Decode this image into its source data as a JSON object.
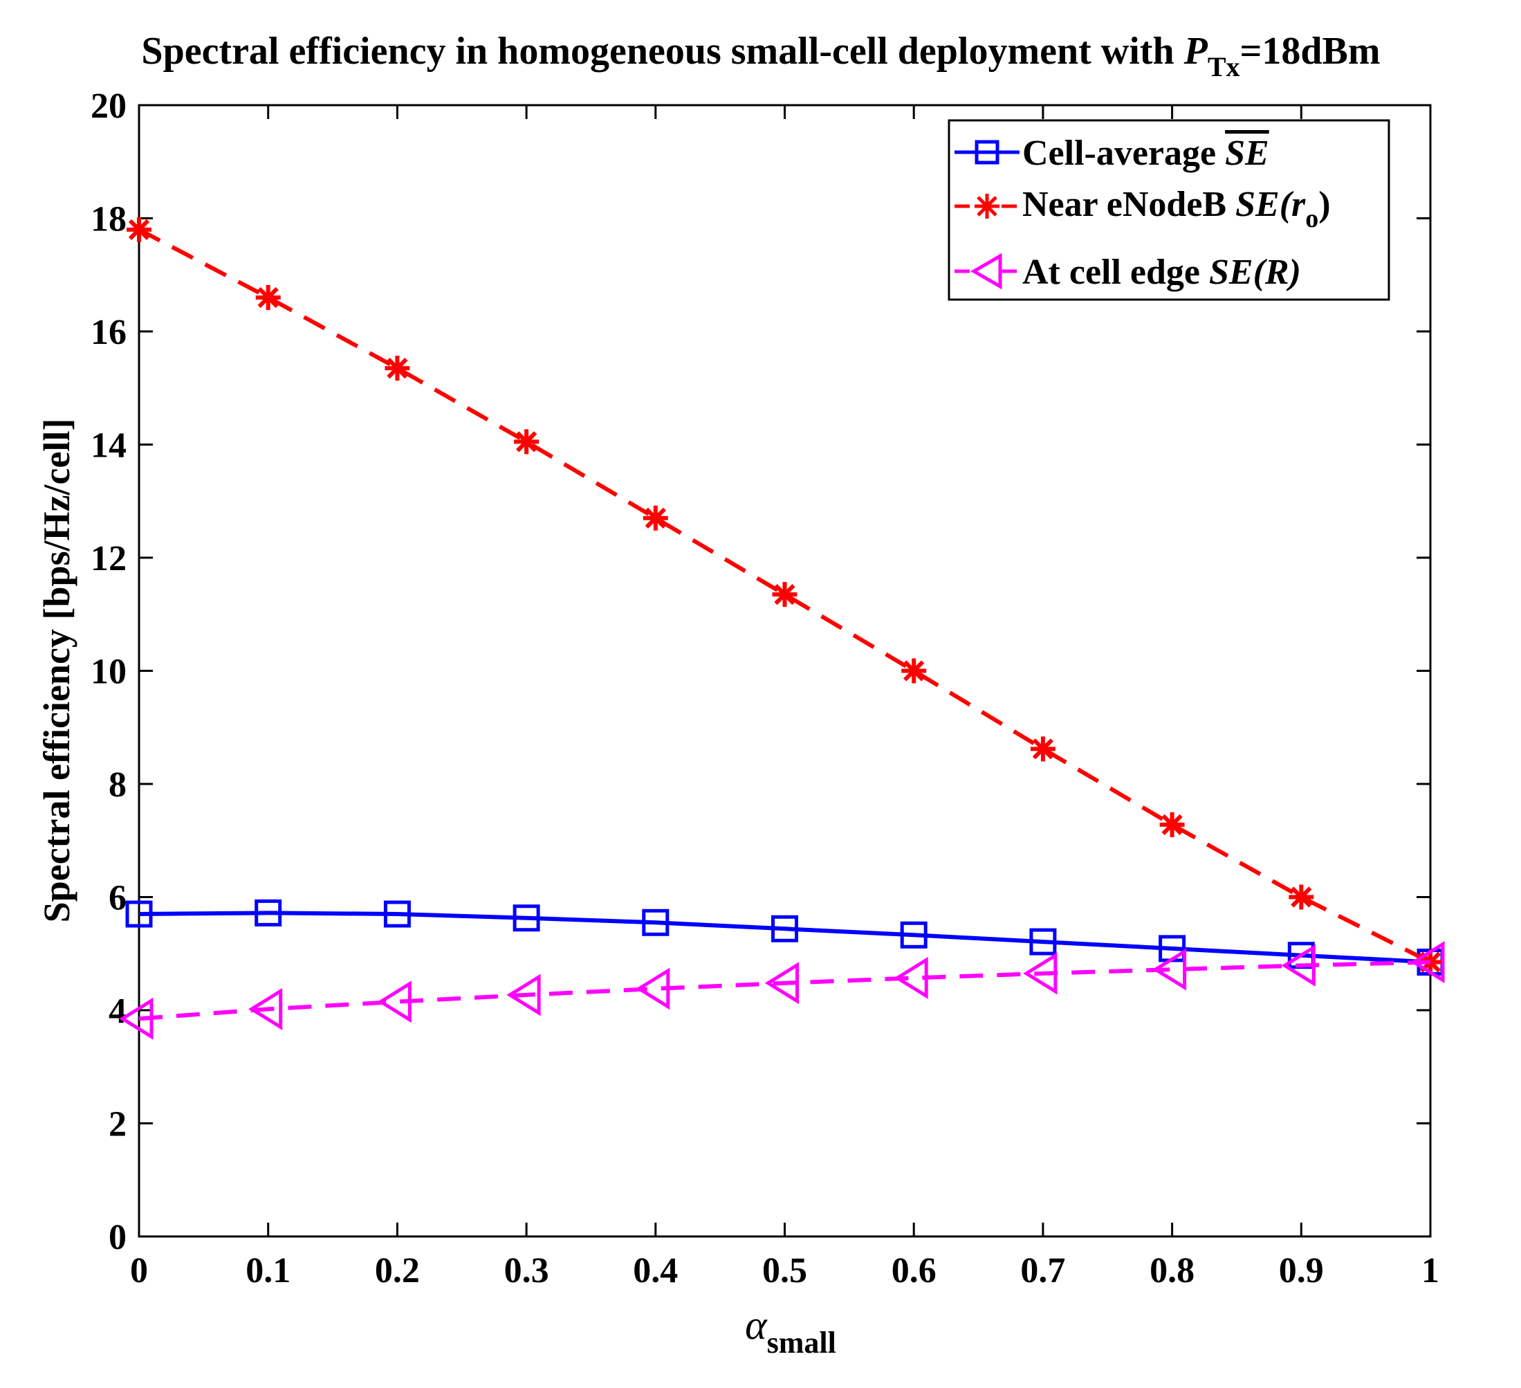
{
  "chart_data": {
    "type": "line",
    "title": {
      "prefix": "Spectral efficiency in homogeneous small-cell deployment with ",
      "var": "P",
      "sub": "Tx",
      "suffix": "=18dBm"
    },
    "xlabel": {
      "symbol": "α",
      "sub": "small"
    },
    "ylabel": "Spectral efficiency [bps/Hz/cell]",
    "xlim": [
      0,
      1
    ],
    "ylim": [
      0,
      20
    ],
    "xticks": [
      "0",
      "0.1",
      "0.2",
      "0.3",
      "0.4",
      "0.5",
      "0.6",
      "0.7",
      "0.8",
      "0.9",
      "1"
    ],
    "yticks": [
      "0",
      "2",
      "4",
      "6",
      "8",
      "10",
      "12",
      "14",
      "16",
      "18",
      "20"
    ],
    "grid": false,
    "legend_position": "top-right",
    "x": [
      0,
      0.1,
      0.2,
      0.3,
      0.4,
      0.5,
      0.6,
      0.7,
      0.8,
      0.9,
      1
    ],
    "series": [
      {
        "name": "Cell-average SE",
        "legend_text": "Cell-average ",
        "legend_math": "SE",
        "legend_overline": true,
        "color": "#0000ff",
        "line": "solid",
        "marker": "square",
        "values": [
          5.7,
          5.72,
          5.7,
          5.63,
          5.55,
          5.44,
          5.33,
          5.21,
          5.09,
          4.97,
          4.85
        ]
      },
      {
        "name": "Near eNodeB SE(r_o)",
        "legend_text": "Near eNodeB ",
        "legend_math": "SE(r",
        "legend_sub": "o",
        "legend_close": ")",
        "color": "#ff0000",
        "line": "dashed",
        "marker": "asterisk",
        "values": [
          17.8,
          16.6,
          15.35,
          14.05,
          12.7,
          11.35,
          10.0,
          8.62,
          7.28,
          6.0,
          4.85
        ]
      },
      {
        "name": "At cell edge SE(R)",
        "legend_text": "At cell edge ",
        "legend_math": "SE(R)",
        "color": "#ff00ff",
        "line": "dashed",
        "marker": "triangle-left",
        "values": [
          3.85,
          4.02,
          4.15,
          4.27,
          4.38,
          4.48,
          4.57,
          4.65,
          4.72,
          4.79,
          4.85
        ]
      }
    ]
  }
}
